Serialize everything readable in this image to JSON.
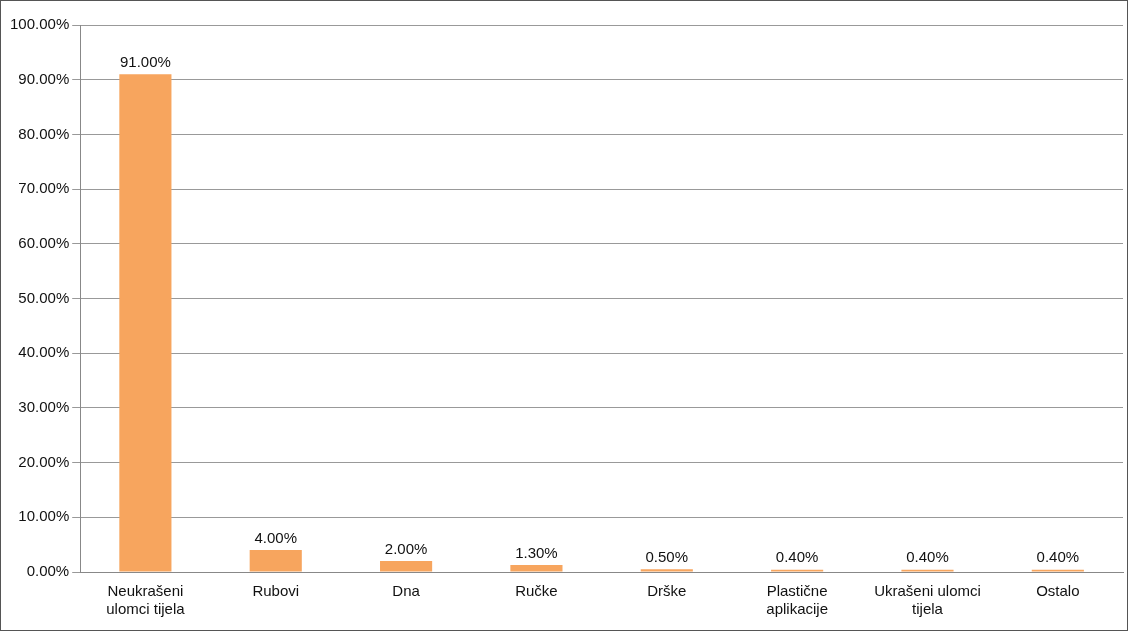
{
  "chart_data": {
    "type": "bar",
    "categories": [
      "Neukrašeni ulomci tijela",
      "Rubovi",
      "Dna",
      "Ručke",
      "Drške",
      "Plastične aplikacije",
      "Ukrašeni ulomci tijela",
      "Ostalo"
    ],
    "values": [
      91,
      4,
      2,
      1.3,
      0.5,
      0.4,
      0.4,
      0.4
    ],
    "value_labels": [
      "91.00%",
      "4.00%",
      "2.00%",
      "1.30%",
      "0.50%",
      "0.40%",
      "0.40%",
      "0.40%"
    ],
    "color": "#f7a55e",
    "ylim": [
      0,
      100
    ],
    "yticks": [
      {
        "value": 0,
        "label": "0.00%"
      },
      {
        "value": 10,
        "label": "10.00%"
      },
      {
        "value": 20,
        "label": "20.00%"
      },
      {
        "value": 30,
        "label": "30.00%"
      },
      {
        "value": 40,
        "label": "40.00%"
      },
      {
        "value": 50,
        "label": "50.00%"
      },
      {
        "value": 60,
        "label": "60.00%"
      },
      {
        "value": 70,
        "label": "70.00%"
      },
      {
        "value": 80,
        "label": "80.00%"
      },
      {
        "value": 90,
        "label": "90.00%"
      },
      {
        "value": 100,
        "label": "100.00%"
      }
    ],
    "grid": "y",
    "legend": false
  }
}
